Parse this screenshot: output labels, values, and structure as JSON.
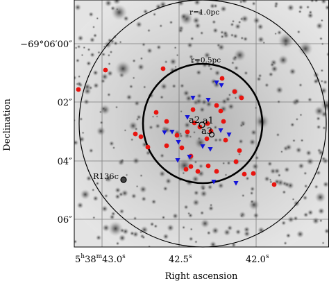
{
  "axes": {
    "xlabel": "Right ascension",
    "ylabel": "Declination",
    "x_ticks": [
      {
        "ra_s": 43.0,
        "label_main": "5",
        "label_h": "h",
        "label_mid": "38",
        "label_m": "m",
        "label_tail": "43.0",
        "label_s": "s"
      },
      {
        "ra_s": 42.5,
        "label_main": "42.5",
        "label_s": "s"
      },
      {
        "ra_s": 42.0,
        "label_main": "42.0",
        "label_s": "s"
      }
    ],
    "y_ticks": [
      {
        "dec_arcsec": 0,
        "label": "−69°06′00″"
      },
      {
        "dec_arcsec": 2,
        "label": "02″"
      },
      {
        "dec_arcsec": 4,
        "label": "04″"
      },
      {
        "dec_arcsec": 6,
        "label": "06″"
      }
    ]
  },
  "annotations": {
    "outer_circle": {
      "label": "r=1.0pc",
      "radius_pc": 1.0
    },
    "inner_circle": {
      "label": "r=0.5pc",
      "radius_pc": 0.5
    },
    "labels": [
      "a2",
      "a1",
      "a3",
      "R136c"
    ]
  },
  "colors": {
    "red_marker": "#e8140f",
    "blue_marker": "#1414d8",
    "background_grey": "#d9d9d9"
  }
}
